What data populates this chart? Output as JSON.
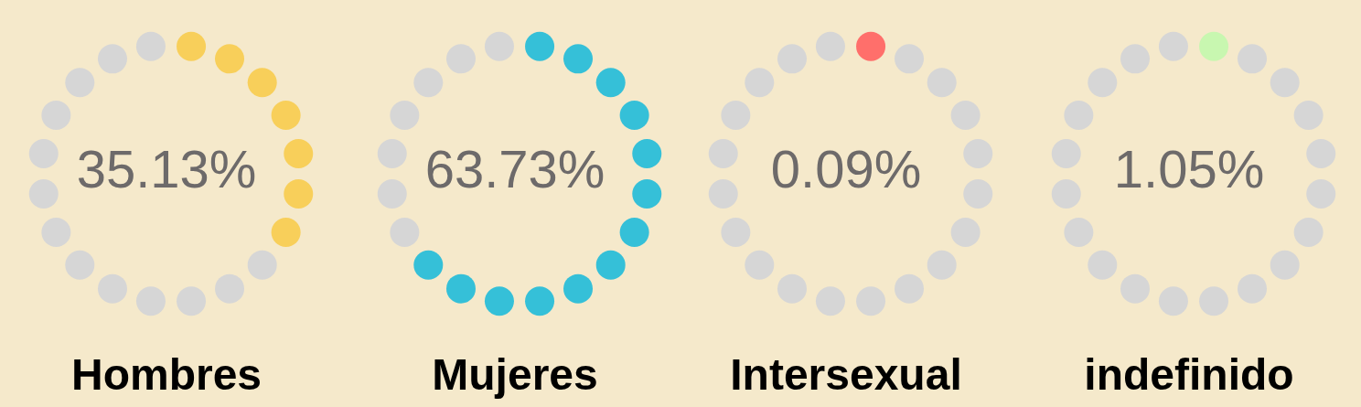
{
  "chart_data": [
    {
      "type": "other",
      "title": "Hombres",
      "values": [
        35.13
      ],
      "value_labels": [
        "35.13%"
      ],
      "color": "#f8cf5a"
    },
    {
      "type": "other",
      "title": "Mujeres",
      "values": [
        63.73
      ],
      "value_labels": [
        "63.73%"
      ],
      "color": "#35c0d8"
    },
    {
      "type": "other",
      "title": "Intersexual",
      "values": [
        0.09
      ],
      "value_labels": [
        "0.09%"
      ],
      "color": "#ff6f6b"
    },
    {
      "type": "other",
      "title": "indefinido",
      "values": [
        1.05
      ],
      "value_labels": [
        "1.05%"
      ],
      "color": "#c8f7b0"
    }
  ]
}
